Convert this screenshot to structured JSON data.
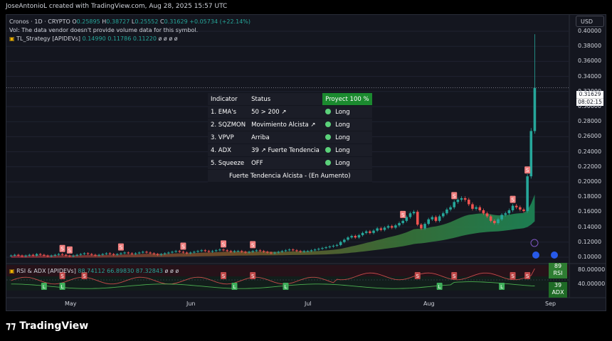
{
  "header": {
    "credit": "JoseAntonioL created with TradingView.com, Aug 28, 2025 15:57 UTC"
  },
  "legend": {
    "symbol": "Cronos · 1D · CRYPTO",
    "o_label": "O",
    "o": "0.25895",
    "h_label": "H",
    "h": "0.38727",
    "l_label": "L",
    "l": "0.25552",
    "c_label": "C",
    "c": "0.31629",
    "change": "+0.05734 (+22.14%)",
    "vol_note": "Vol: The data vendor doesn't provide volume data for this symbol.",
    "strategy_name": "TL_Strategy [APIDEVs]",
    "strategy_values": "0.14990  0.11786  0.11220",
    "strategy_tail": "ø  ø  ø  ø",
    "rsi_name": "RSI & ADX [APIDEVs]",
    "rsi_values": "88.74112  66.89830  87.32843",
    "rsi_tail": "ø  ø  ø"
  },
  "currency_button": "USD",
  "price_tag": {
    "price": "0.31629",
    "countdown": "08:02:15"
  },
  "price_axis": [
    "0.40000",
    "0.38000",
    "0.36000",
    "0.34000",
    "0.32000",
    "0.30000",
    "0.28000",
    "0.26000",
    "0.24000",
    "0.22000",
    "0.20000",
    "0.18000",
    "0.16000",
    "0.14000",
    "0.12000",
    "0.10000"
  ],
  "osc_axis": [
    "80.00000",
    "40.00000"
  ],
  "rsi_badge": {
    "value": "89",
    "label": "RSI"
  },
  "adx_badge": {
    "value": "39",
    "label": "ADX"
  },
  "time_axis": [
    "May",
    "Jun",
    "Jul",
    "Aug",
    "Sep"
  ],
  "strategy_table": {
    "headers": [
      "Indicator",
      "Status",
      "Proyect 100 %"
    ],
    "rows": [
      {
        "indicator": "1. EMA's",
        "status": "50 > 200 ↗",
        "signal": "Long"
      },
      {
        "indicator": "2. SQZMON",
        "status": "Movimiento Alcista ↗",
        "signal": "Long"
      },
      {
        "indicator": "3. VPVP",
        "status": "Arriba",
        "signal": "Long"
      },
      {
        "indicator": "4. ADX",
        "status": "39 ↗ Fuerte Tendencia",
        "signal": "Long"
      },
      {
        "indicator": "5. Squeeze",
        "status": "OFF",
        "signal": "Long"
      }
    ],
    "footer": "Fuerte Tendencia Alcista - (En Aumento)"
  },
  "signal_marks": {
    "sell": "S",
    "buy": "L"
  },
  "brand": "TradingView",
  "colors": {
    "up": "#26a69a",
    "down": "#ef5350",
    "accent": "#1b8a2f",
    "ribbon_green": "#1e8e5a",
    "ribbon_red": "#8b2a3a"
  },
  "chart_data": {
    "type": "candlestick",
    "y_range": [
      0.09,
      0.41
    ],
    "closing_prices_approx": [
      0.094,
      0.095,
      0.094,
      0.093,
      0.094,
      0.095,
      0.094,
      0.096,
      0.095,
      0.094,
      0.093,
      0.094,
      0.095,
      0.096,
      0.095,
      0.094,
      0.093,
      0.094,
      0.095,
      0.096,
      0.097,
      0.096,
      0.095,
      0.094,
      0.095,
      0.096,
      0.097,
      0.096,
      0.095,
      0.096,
      0.097,
      0.098,
      0.097,
      0.096,
      0.097,
      0.098,
      0.099,
      0.098,
      0.097,
      0.096,
      0.095,
      0.096,
      0.097,
      0.098,
      0.099,
      0.1,
      0.099,
      0.098,
      0.097,
      0.098,
      0.099,
      0.1,
      0.101,
      0.1,
      0.099,
      0.1,
      0.101,
      0.102,
      0.101,
      0.1,
      0.099,
      0.1,
      0.1,
      0.099,
      0.098,
      0.099,
      0.1,
      0.101,
      0.1,
      0.099,
      0.098,
      0.097,
      0.098,
      0.099,
      0.1,
      0.101,
      0.102,
      0.101,
      0.1,
      0.099,
      0.1,
      0.1,
      0.101,
      0.102,
      0.103,
      0.104,
      0.105,
      0.106,
      0.107,
      0.108,
      0.112,
      0.115,
      0.118,
      0.12,
      0.118,
      0.121,
      0.124,
      0.126,
      0.124,
      0.127,
      0.13,
      0.128,
      0.131,
      0.133,
      0.131,
      0.134,
      0.137,
      0.14,
      0.145,
      0.15,
      0.152,
      0.135,
      0.13,
      0.136,
      0.142,
      0.145,
      0.14,
      0.146,
      0.15,
      0.155,
      0.158,
      0.165,
      0.168,
      0.17,
      0.168,
      0.162,
      0.156,
      0.158,
      0.154,
      0.15,
      0.146,
      0.14,
      0.137,
      0.142,
      0.148,
      0.15,
      0.154,
      0.16,
      0.158,
      0.155,
      0.153,
      0.199,
      0.259,
      0.316
    ],
    "last": {
      "open": 0.25895,
      "high": 0.38727,
      "low": 0.25552,
      "close": 0.31629
    },
    "rsi_last": 88.74,
    "adx_last": 39
  }
}
